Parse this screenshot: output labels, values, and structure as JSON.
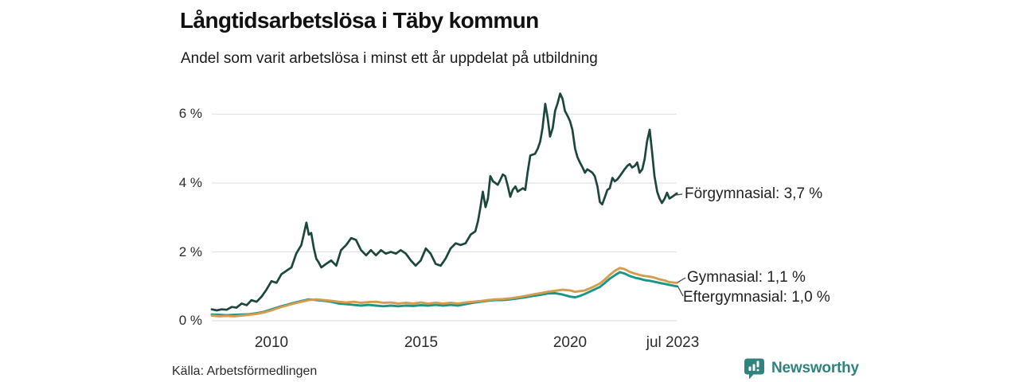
{
  "header": {
    "title": "Långtidsarbetslösa i Täby kommun",
    "subtitle": "Andel som varit arbetslösa i minst ett år uppdelat på utbildning"
  },
  "footer": {
    "source": "Källa: Arbetsförmedlingen",
    "brand_name": "Newsworthy",
    "brand_color": "#2e837d"
  },
  "chart_data": {
    "type": "line",
    "title": "Långtidsarbetslösa i Täby kommun",
    "subtitle": "Andel som varit arbetslösa i minst ett år uppdelat på utbildning",
    "unit": "%",
    "grid": true,
    "legend_position": "end-of-line labels",
    "x_axis": {
      "range": [
        2008,
        2023.58
      ],
      "ticks": [
        {
          "label": "2010",
          "year": 2010
        },
        {
          "label": "2015",
          "year": 2015
        },
        {
          "label": "2020",
          "year": 2020
        },
        {
          "label": "jul 2023",
          "year": 2023.5
        }
      ]
    },
    "y_axis": {
      "range": [
        0,
        6.6
      ],
      "ticks": [
        {
          "label": "6 %",
          "value": 6
        },
        {
          "label": "4 %",
          "value": 4
        },
        {
          "label": "2 %",
          "value": 2
        },
        {
          "label": "0 %",
          "value": 0
        }
      ]
    },
    "series": [
      {
        "name": "Förgymnasial",
        "end_label": "Förgymnasial: 3,7 %",
        "last_value": 3.7,
        "color": "#1c463e",
        "points": [
          [
            2008.0,
            0.33
          ],
          [
            2008.17,
            0.3
          ],
          [
            2008.33,
            0.33
          ],
          [
            2008.5,
            0.32
          ],
          [
            2008.67,
            0.4
          ],
          [
            2008.83,
            0.38
          ],
          [
            2009.0,
            0.5
          ],
          [
            2009.17,
            0.45
          ],
          [
            2009.33,
            0.6
          ],
          [
            2009.5,
            0.55
          ],
          [
            2009.67,
            0.7
          ],
          [
            2009.83,
            0.9
          ],
          [
            2010.0,
            1.15
          ],
          [
            2010.17,
            1.1
          ],
          [
            2010.33,
            1.35
          ],
          [
            2010.5,
            1.45
          ],
          [
            2010.67,
            1.55
          ],
          [
            2010.83,
            1.95
          ],
          [
            2011.0,
            2.2
          ],
          [
            2011.08,
            2.5
          ],
          [
            2011.17,
            2.85
          ],
          [
            2011.25,
            2.5
          ],
          [
            2011.33,
            2.55
          ],
          [
            2011.42,
            2.1
          ],
          [
            2011.5,
            1.8
          ],
          [
            2011.58,
            1.7
          ],
          [
            2011.67,
            1.55
          ],
          [
            2011.83,
            1.65
          ],
          [
            2012.0,
            1.75
          ],
          [
            2012.17,
            1.6
          ],
          [
            2012.33,
            2.05
          ],
          [
            2012.5,
            2.2
          ],
          [
            2012.67,
            2.4
          ],
          [
            2012.83,
            2.35
          ],
          [
            2013.0,
            2.05
          ],
          [
            2013.17,
            1.9
          ],
          [
            2013.33,
            2.05
          ],
          [
            2013.5,
            1.9
          ],
          [
            2013.67,
            2.05
          ],
          [
            2013.83,
            1.95
          ],
          [
            2014.0,
            2.0
          ],
          [
            2014.17,
            1.95
          ],
          [
            2014.33,
            2.05
          ],
          [
            2014.5,
            1.95
          ],
          [
            2014.67,
            1.75
          ],
          [
            2014.83,
            1.6
          ],
          [
            2015.0,
            1.75
          ],
          [
            2015.17,
            2.1
          ],
          [
            2015.33,
            1.95
          ],
          [
            2015.5,
            1.65
          ],
          [
            2015.67,
            1.6
          ],
          [
            2015.83,
            1.8
          ],
          [
            2016.0,
            2.1
          ],
          [
            2016.17,
            2.25
          ],
          [
            2016.33,
            2.2
          ],
          [
            2016.5,
            2.25
          ],
          [
            2016.67,
            2.5
          ],
          [
            2016.83,
            2.6
          ],
          [
            2016.92,
            2.9
          ],
          [
            2017.0,
            3.3
          ],
          [
            2017.08,
            3.75
          ],
          [
            2017.17,
            3.3
          ],
          [
            2017.25,
            3.55
          ],
          [
            2017.33,
            4.2
          ],
          [
            2017.42,
            4.05
          ],
          [
            2017.5,
            4.0
          ],
          [
            2017.58,
            3.95
          ],
          [
            2017.67,
            4.1
          ],
          [
            2017.75,
            4.25
          ],
          [
            2017.83,
            4.2
          ],
          [
            2017.92,
            3.9
          ],
          [
            2018.0,
            3.6
          ],
          [
            2018.08,
            3.8
          ],
          [
            2018.17,
            3.9
          ],
          [
            2018.25,
            3.75
          ],
          [
            2018.33,
            3.8
          ],
          [
            2018.42,
            3.85
          ],
          [
            2018.5,
            3.8
          ],
          [
            2018.58,
            4.3
          ],
          [
            2018.67,
            4.8
          ],
          [
            2018.83,
            4.85
          ],
          [
            2018.92,
            5.0
          ],
          [
            2019.0,
            5.2
          ],
          [
            2019.08,
            5.6
          ],
          [
            2019.17,
            6.3
          ],
          [
            2019.25,
            5.9
          ],
          [
            2019.33,
            5.35
          ],
          [
            2019.42,
            5.6
          ],
          [
            2019.5,
            6.1
          ],
          [
            2019.58,
            6.3
          ],
          [
            2019.67,
            6.6
          ],
          [
            2019.75,
            6.45
          ],
          [
            2019.83,
            6.1
          ],
          [
            2019.92,
            5.95
          ],
          [
            2020.0,
            5.8
          ],
          [
            2020.08,
            5.55
          ],
          [
            2020.17,
            5.0
          ],
          [
            2020.25,
            4.75
          ],
          [
            2020.33,
            4.6
          ],
          [
            2020.42,
            4.45
          ],
          [
            2020.5,
            4.3
          ],
          [
            2020.58,
            4.4
          ],
          [
            2020.67,
            4.35
          ],
          [
            2020.75,
            4.3
          ],
          [
            2020.83,
            4.2
          ],
          [
            2020.92,
            3.9
          ],
          [
            2021.0,
            3.45
          ],
          [
            2021.08,
            3.38
          ],
          [
            2021.17,
            3.6
          ],
          [
            2021.25,
            3.8
          ],
          [
            2021.33,
            3.85
          ],
          [
            2021.42,
            4.15
          ],
          [
            2021.5,
            4.05
          ],
          [
            2021.58,
            4.1
          ],
          [
            2021.67,
            4.2
          ],
          [
            2021.75,
            4.3
          ],
          [
            2021.83,
            4.4
          ],
          [
            2021.92,
            4.5
          ],
          [
            2022.0,
            4.55
          ],
          [
            2022.08,
            4.45
          ],
          [
            2022.17,
            4.5
          ],
          [
            2022.25,
            4.6
          ],
          [
            2022.33,
            4.3
          ],
          [
            2022.42,
            4.4
          ],
          [
            2022.5,
            4.7
          ],
          [
            2022.58,
            5.2
          ],
          [
            2022.67,
            5.55
          ],
          [
            2022.75,
            4.9
          ],
          [
            2022.83,
            4.2
          ],
          [
            2022.92,
            3.75
          ],
          [
            2023.0,
            3.55
          ],
          [
            2023.08,
            3.42
          ],
          [
            2023.17,
            3.55
          ],
          [
            2023.25,
            3.72
          ],
          [
            2023.33,
            3.55
          ],
          [
            2023.42,
            3.6
          ],
          [
            2023.58,
            3.7
          ]
        ]
      },
      {
        "name": "Gymnasial",
        "end_label": "Gymnasial: 1,1 %",
        "last_value": 1.1,
        "color": "#d49c4c",
        "points": [
          [
            2008.0,
            0.15
          ],
          [
            2008.25,
            0.13
          ],
          [
            2008.5,
            0.14
          ],
          [
            2008.75,
            0.13
          ],
          [
            2009.0,
            0.15
          ],
          [
            2009.25,
            0.17
          ],
          [
            2009.5,
            0.2
          ],
          [
            2009.75,
            0.24
          ],
          [
            2010.0,
            0.3
          ],
          [
            2010.25,
            0.38
          ],
          [
            2010.5,
            0.44
          ],
          [
            2010.75,
            0.5
          ],
          [
            2011.0,
            0.55
          ],
          [
            2011.25,
            0.6
          ],
          [
            2011.5,
            0.62
          ],
          [
            2011.75,
            0.6
          ],
          [
            2012.0,
            0.58
          ],
          [
            2012.25,
            0.55
          ],
          [
            2012.5,
            0.53
          ],
          [
            2012.75,
            0.55
          ],
          [
            2013.0,
            0.52
          ],
          [
            2013.25,
            0.54
          ],
          [
            2013.5,
            0.55
          ],
          [
            2013.75,
            0.52
          ],
          [
            2014.0,
            0.53
          ],
          [
            2014.25,
            0.5
          ],
          [
            2014.5,
            0.52
          ],
          [
            2014.75,
            0.5
          ],
          [
            2015.0,
            0.53
          ],
          [
            2015.25,
            0.5
          ],
          [
            2015.5,
            0.52
          ],
          [
            2015.75,
            0.5
          ],
          [
            2016.0,
            0.52
          ],
          [
            2016.25,
            0.5
          ],
          [
            2016.5,
            0.53
          ],
          [
            2016.75,
            0.55
          ],
          [
            2017.0,
            0.57
          ],
          [
            2017.25,
            0.6
          ],
          [
            2017.5,
            0.62
          ],
          [
            2017.75,
            0.63
          ],
          [
            2018.0,
            0.65
          ],
          [
            2018.25,
            0.68
          ],
          [
            2018.5,
            0.72
          ],
          [
            2018.75,
            0.76
          ],
          [
            2019.0,
            0.8
          ],
          [
            2019.25,
            0.84
          ],
          [
            2019.5,
            0.87
          ],
          [
            2019.75,
            0.9
          ],
          [
            2020.0,
            0.88
          ],
          [
            2020.17,
            0.84
          ],
          [
            2020.33,
            0.86
          ],
          [
            2020.5,
            0.88
          ],
          [
            2020.75,
            0.97
          ],
          [
            2021.0,
            1.08
          ],
          [
            2021.17,
            1.2
          ],
          [
            2021.33,
            1.33
          ],
          [
            2021.5,
            1.45
          ],
          [
            2021.67,
            1.53
          ],
          [
            2021.83,
            1.5
          ],
          [
            2022.0,
            1.42
          ],
          [
            2022.17,
            1.37
          ],
          [
            2022.33,
            1.33
          ],
          [
            2022.5,
            1.3
          ],
          [
            2022.67,
            1.28
          ],
          [
            2022.83,
            1.25
          ],
          [
            2023.0,
            1.2
          ],
          [
            2023.17,
            1.17
          ],
          [
            2023.33,
            1.12
          ],
          [
            2023.58,
            1.1
          ]
        ]
      },
      {
        "name": "Eftergymnasial",
        "end_label": "Eftergymnasial: 1,0 %",
        "last_value": 1.0,
        "color": "#1b9587",
        "points": [
          [
            2008.0,
            0.18
          ],
          [
            2008.25,
            0.17
          ],
          [
            2008.5,
            0.16
          ],
          [
            2008.75,
            0.17
          ],
          [
            2009.0,
            0.18
          ],
          [
            2009.25,
            0.19
          ],
          [
            2009.5,
            0.22
          ],
          [
            2009.75,
            0.26
          ],
          [
            2010.0,
            0.33
          ],
          [
            2010.25,
            0.4
          ],
          [
            2010.5,
            0.46
          ],
          [
            2010.75,
            0.52
          ],
          [
            2011.0,
            0.57
          ],
          [
            2011.25,
            0.62
          ],
          [
            2011.5,
            0.6
          ],
          [
            2011.75,
            0.58
          ],
          [
            2012.0,
            0.55
          ],
          [
            2012.25,
            0.5
          ],
          [
            2012.5,
            0.48
          ],
          [
            2012.75,
            0.46
          ],
          [
            2013.0,
            0.44
          ],
          [
            2013.25,
            0.46
          ],
          [
            2013.5,
            0.44
          ],
          [
            2013.75,
            0.42
          ],
          [
            2014.0,
            0.44
          ],
          [
            2014.25,
            0.42
          ],
          [
            2014.5,
            0.44
          ],
          [
            2014.75,
            0.43
          ],
          [
            2015.0,
            0.45
          ],
          [
            2015.25,
            0.44
          ],
          [
            2015.5,
            0.46
          ],
          [
            2015.75,
            0.44
          ],
          [
            2016.0,
            0.46
          ],
          [
            2016.25,
            0.44
          ],
          [
            2016.5,
            0.48
          ],
          [
            2016.75,
            0.52
          ],
          [
            2017.0,
            0.55
          ],
          [
            2017.25,
            0.58
          ],
          [
            2017.5,
            0.6
          ],
          [
            2017.75,
            0.6
          ],
          [
            2018.0,
            0.62
          ],
          [
            2018.25,
            0.65
          ],
          [
            2018.5,
            0.68
          ],
          [
            2018.75,
            0.72
          ],
          [
            2019.0,
            0.75
          ],
          [
            2019.25,
            0.79
          ],
          [
            2019.5,
            0.8
          ],
          [
            2019.75,
            0.76
          ],
          [
            2020.0,
            0.7
          ],
          [
            2020.17,
            0.68
          ],
          [
            2020.33,
            0.72
          ],
          [
            2020.5,
            0.78
          ],
          [
            2020.75,
            0.88
          ],
          [
            2021.0,
            0.98
          ],
          [
            2021.17,
            1.1
          ],
          [
            2021.33,
            1.22
          ],
          [
            2021.5,
            1.32
          ],
          [
            2021.67,
            1.41
          ],
          [
            2021.83,
            1.37
          ],
          [
            2022.0,
            1.3
          ],
          [
            2022.17,
            1.25
          ],
          [
            2022.33,
            1.22
          ],
          [
            2022.5,
            1.18
          ],
          [
            2022.67,
            1.16
          ],
          [
            2022.83,
            1.13
          ],
          [
            2023.0,
            1.1
          ],
          [
            2023.17,
            1.07
          ],
          [
            2023.33,
            1.04
          ],
          [
            2023.58,
            1.0
          ]
        ]
      }
    ],
    "source": "Källa: Arbetsförmedlingen"
  }
}
